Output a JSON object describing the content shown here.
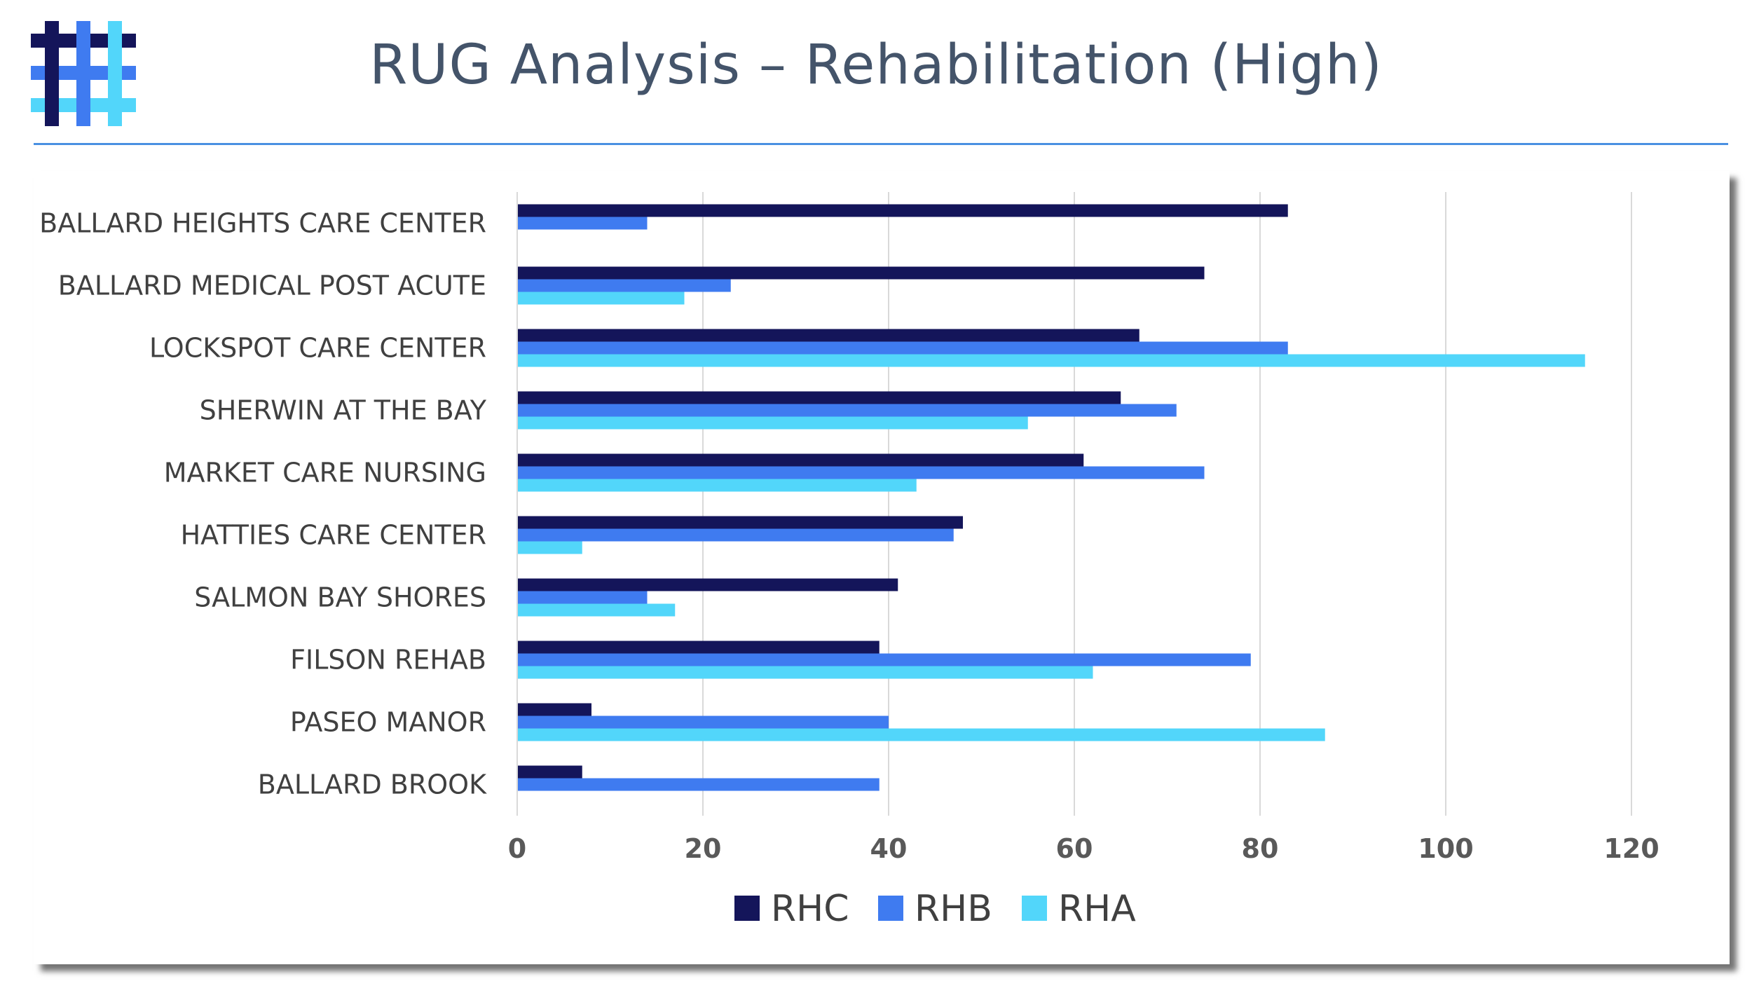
{
  "header": {
    "title": "RUG Analysis – Rehabilitation (High)"
  },
  "logo": {
    "icon": "hashtag-grid-logo-icon",
    "colors": [
      "#14155a",
      "#3f7bf0",
      "#52d6fa"
    ]
  },
  "chart_data": {
    "type": "bar",
    "orientation": "horizontal",
    "title": "",
    "xlabel": "",
    "ylabel": "",
    "xlim": [
      0,
      120
    ],
    "x_ticks": [
      0,
      20,
      40,
      60,
      80,
      100,
      120
    ],
    "grid": "vertical",
    "legend_position": "bottom",
    "categories": [
      "BALLARD HEIGHTS CARE CENTER",
      "BALLARD MEDICAL POST ACUTE",
      "LOCKSPOT CARE CENTER",
      "SHERWIN AT THE BAY",
      "MARKET CARE NURSING",
      "HATTIES CARE CENTER",
      "SALMON BAY SHORES",
      "FILSON REHAB",
      "PASEO MANOR",
      "BALLARD BROOK"
    ],
    "series": [
      {
        "name": "RHC",
        "color": "#14155a",
        "values": [
          83,
          74,
          67,
          65,
          61,
          48,
          41,
          39,
          8,
          7
        ]
      },
      {
        "name": "RHB",
        "color": "#3f7bf0",
        "values": [
          14,
          23,
          83,
          71,
          74,
          47,
          14,
          79,
          40,
          39
        ]
      },
      {
        "name": "RHA",
        "color": "#52d6fa",
        "values": [
          0,
          18,
          115,
          55,
          43,
          7,
          17,
          62,
          87,
          0
        ]
      }
    ]
  }
}
